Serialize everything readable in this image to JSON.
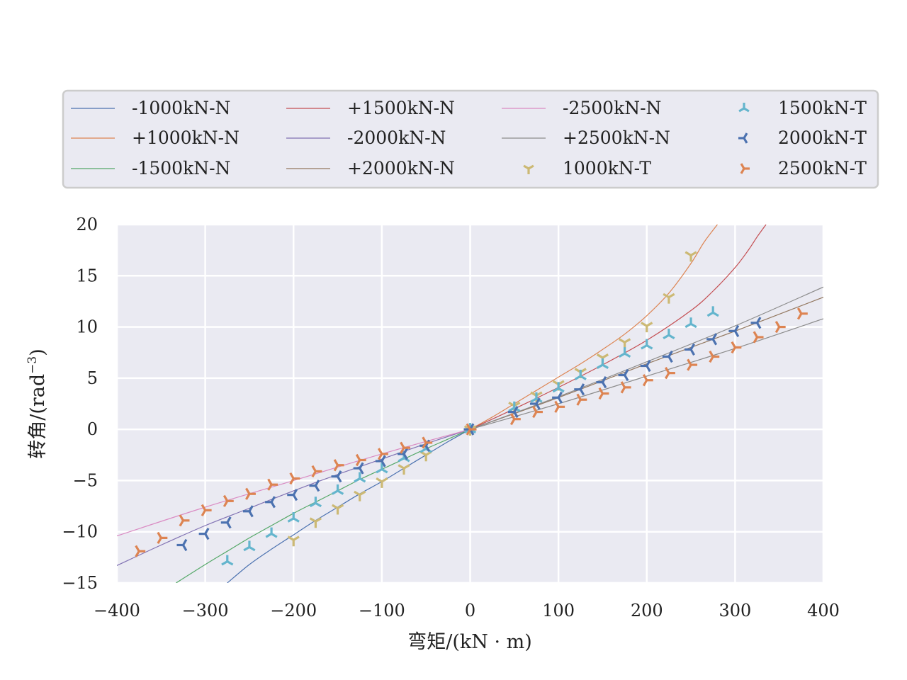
{
  "chart_data": {
    "type": "line",
    "xlabel": "弯矩/(kN · m)",
    "ylabel": "转角/(rad",
    "ylabel_exp": "−3",
    "ylabel_close": ")",
    "xlim": [
      -400,
      400
    ],
    "ylim": [
      -15,
      20
    ],
    "xticks": [
      -400,
      -300,
      -200,
      -100,
      0,
      100,
      200,
      300,
      400
    ],
    "xtick_labels": [
      "−400",
      "−300",
      "−200",
      "−100",
      "0",
      "100",
      "200",
      "300",
      "400"
    ],
    "yticks": [
      -15,
      -10,
      -5,
      0,
      5,
      10,
      15,
      20
    ],
    "ytick_labels": [
      "−15",
      "−10",
      "−5",
      "0",
      "5",
      "10",
      "15",
      "20"
    ],
    "grid": true,
    "legend_position": "top",
    "background": "#eaeaf2",
    "series": [
      {
        "name": "-1000kN-N",
        "kind": "line",
        "color": "#4c72b0",
        "x": [
          -275,
          -250,
          -225,
          -200,
          -175,
          -150,
          -125,
          -100,
          -75,
          -50,
          -25,
          0
        ],
        "y": [
          -15,
          -13.2,
          -11.7,
          -10.3,
          -8.9,
          -7.6,
          -6.3,
          -5.1,
          -3.8,
          -2.5,
          -1.2,
          0
        ]
      },
      {
        "name": "+1000kN-N",
        "kind": "line",
        "color": "#dd8452",
        "x": [
          0,
          25,
          50,
          75,
          100,
          125,
          150,
          175,
          200,
          225,
          250,
          265,
          280
        ],
        "y": [
          0,
          1.2,
          2.5,
          3.8,
          5.1,
          6.4,
          7.8,
          9.3,
          11.1,
          13.3,
          16.2,
          18.3,
          20
        ]
      },
      {
        "name": "-1500kN-N",
        "kind": "line",
        "color": "#55a868",
        "x": [
          -333,
          -300,
          -275,
          -250,
          -225,
          -200,
          -175,
          -150,
          -125,
          -100,
          -75,
          -50,
          -25,
          0
        ],
        "y": [
          -15,
          -13.2,
          -11.9,
          -10.6,
          -9.4,
          -8.2,
          -7.1,
          -6.0,
          -4.9,
          -3.9,
          -2.9,
          -1.9,
          -0.95,
          0
        ]
      },
      {
        "name": "+1500kN-N",
        "kind": "line",
        "color": "#c44e52",
        "x": [
          0,
          50,
          100,
          150,
          200,
          250,
          275,
          300,
          315,
          325,
          335
        ],
        "y": [
          0,
          2.0,
          4.1,
          6.3,
          8.7,
          11.6,
          13.5,
          15.8,
          17.5,
          18.8,
          20
        ]
      },
      {
        "name": "-2000kN-N",
        "kind": "line",
        "color": "#8172b3",
        "x": [
          -400,
          -350,
          -300,
          -250,
          -200,
          -150,
          -100,
          -50,
          0
        ],
        "y": [
          -13.3,
          -11.3,
          -9.4,
          -7.7,
          -6.0,
          -4.4,
          -2.9,
          -1.4,
          0
        ]
      },
      {
        "name": "+2000kN-N",
        "kind": "line",
        "color": "#937860",
        "x": [
          0,
          100,
          200,
          300,
          400
        ],
        "y": [
          0,
          3.1,
          6.4,
          9.6,
          12.9
        ]
      },
      {
        "name": "-2500kN-N",
        "kind": "line",
        "color": "#da8bc3",
        "x": [
          -400,
          -300,
          -200,
          -100,
          0
        ],
        "y": [
          -10.4,
          -7.6,
          -5.0,
          -2.4,
          0
        ]
      },
      {
        "name": "+2500kN-N",
        "kind": "line",
        "color": "#8c8c8c",
        "x": [
          0,
          100,
          200,
          300,
          400
        ],
        "y": [
          0,
          3.2,
          6.6,
          10.1,
          13.9
        ]
      },
      {
        "name": "+2500kN-N",
        "kind": "line",
        "color": "#8c8c8c",
        "legend": false,
        "x": [
          0,
          100,
          200,
          300,
          400
        ],
        "y": [
          0,
          2.5,
          5.2,
          7.9,
          10.8
        ]
      },
      {
        "name": "1000kN-T",
        "kind": "marker",
        "marker": "tri_down",
        "color": "#ccb974",
        "x": [
          -200,
          -175,
          -150,
          -125,
          -100,
          -75,
          -50,
          0,
          50,
          75,
          100,
          125,
          150,
          175,
          200,
          225,
          250
        ],
        "y": [
          -10.8,
          -9.0,
          -7.7,
          -6.4,
          -5.1,
          -3.8,
          -2.5,
          0,
          2.3,
          3.3,
          4.4,
          5.6,
          7.0,
          8.5,
          10.1,
          12.9,
          17.0
        ]
      },
      {
        "name": "1500kN-T",
        "kind": "marker",
        "marker": "tri_up",
        "color": "#64b5cd",
        "x": [
          -275,
          -250,
          -225,
          -200,
          -175,
          -150,
          -125,
          -100,
          -75,
          -50,
          0,
          50,
          75,
          100,
          125,
          150,
          175,
          200,
          225,
          250,
          275
        ],
        "y": [
          -12.9,
          -11.5,
          -10.2,
          -8.7,
          -7.2,
          -6.0,
          -4.8,
          -3.9,
          -2.8,
          -1.9,
          0,
          2.1,
          3.0,
          4.0,
          5.2,
          6.3,
          7.4,
          8.2,
          9.2,
          10.3,
          11.4
        ]
      },
      {
        "name": "2000kN-T",
        "kind": "marker",
        "marker": "tri_left",
        "color": "#4c72b0",
        "x": [
          -325,
          -300,
          -275,
          -250,
          -225,
          -200,
          -175,
          -150,
          -125,
          -100,
          -75,
          -50,
          0,
          50,
          75,
          100,
          125,
          150,
          175,
          200,
          225,
          250,
          275,
          300,
          325
        ],
        "y": [
          -11.3,
          -10.2,
          -9.1,
          -8.0,
          -7.1,
          -6.4,
          -5.5,
          -4.6,
          -3.8,
          -3.1,
          -2.4,
          -1.6,
          0,
          1.7,
          2.5,
          3.1,
          3.9,
          4.6,
          5.3,
          6.2,
          7.1,
          7.8,
          8.8,
          9.6,
          10.4
        ]
      },
      {
        "name": "2500kN-T",
        "kind": "marker",
        "marker": "tri_right",
        "color": "#dd8452",
        "x": [
          -375,
          -350,
          -325,
          -300,
          -275,
          -250,
          -225,
          -200,
          -175,
          -150,
          -125,
          -100,
          -75,
          -50,
          0,
          50,
          75,
          100,
          125,
          150,
          175,
          200,
          225,
          250,
          275,
          300,
          325,
          350,
          375
        ],
        "y": [
          -11.9,
          -10.6,
          -8.9,
          -7.9,
          -7.0,
          -6.3,
          -5.4,
          -4.8,
          -4.1,
          -3.5,
          -3.0,
          -2.4,
          -1.8,
          -1.3,
          0,
          1.0,
          1.7,
          2.2,
          2.9,
          3.5,
          4.1,
          4.8,
          5.5,
          6.3,
          7.1,
          8.0,
          9.0,
          10.0,
          11.3
        ]
      }
    ]
  }
}
